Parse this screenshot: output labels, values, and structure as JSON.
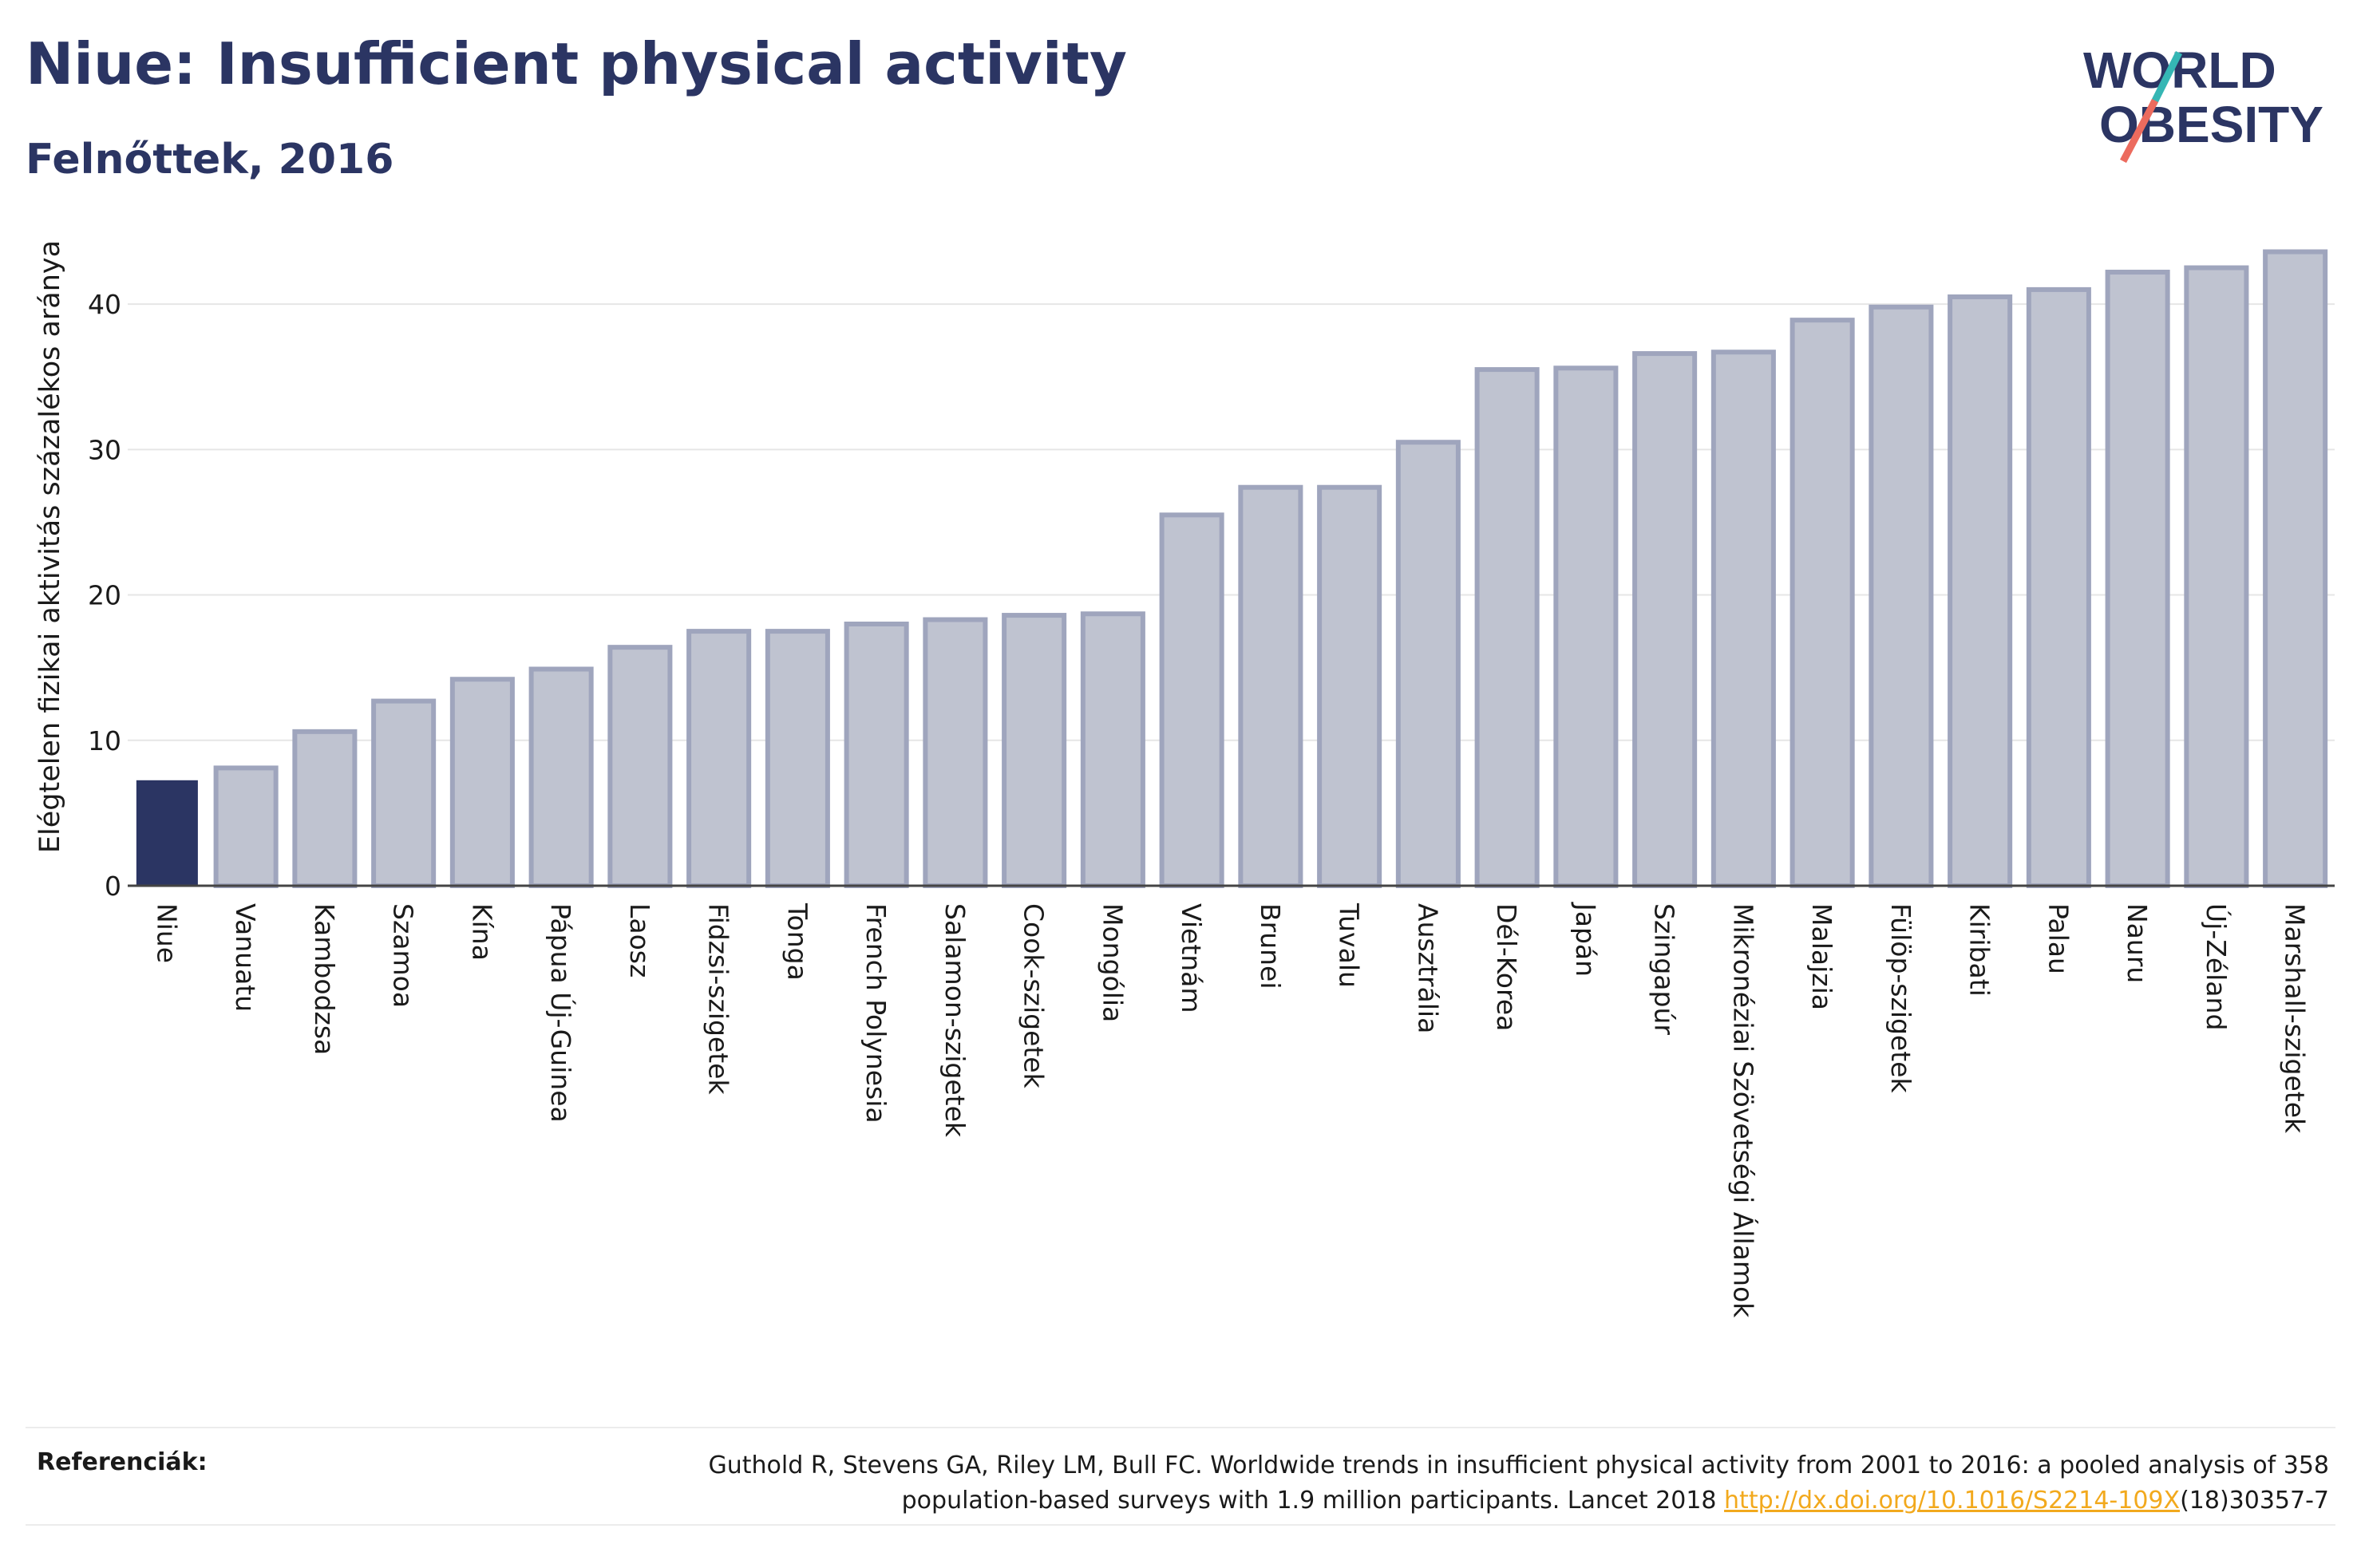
{
  "header": {
    "title": "Niue: Insufficient physical activity",
    "subtitle": "Felnőttek, 2016"
  },
  "logo": {
    "line1": "WORLD",
    "line2": "OBESITY"
  },
  "colors": {
    "highlight_bar": "#2b3563",
    "other_bar_fill": "#bfc3d0",
    "other_bar_stroke": "#9fa5bd",
    "text": "#2b3563",
    "link": "#f2a91d",
    "grid": "#e6e6e6"
  },
  "chart_data": {
    "type": "bar",
    "ylabel": "Elégtelen fizikai aktivitás százalékos aránya",
    "xlabel": "",
    "ylim": [
      0,
      45
    ],
    "yticks": [
      0,
      10,
      20,
      30,
      40
    ],
    "grid": true,
    "highlight": "Niue",
    "categories": [
      "Niue",
      "Vanuatu",
      "Kambodzsa",
      "Szamoa",
      "Kína",
      "Pápua Új-Guinea",
      "Laosz",
      "Fidzsi-szigetek",
      "Tonga",
      "French Polynesia",
      "Salamon-szigetek",
      "Cook-szigetek",
      "Mongólia",
      "Vietnám",
      "Brunei",
      "Tuvalu",
      "Ausztrália",
      "Dél-Korea",
      "Japán",
      "Szingapúr",
      "Mikronéziai Szövetségi Államok",
      "Malajzia",
      "Fülöp-szigetek",
      "Kiribati",
      "Palau",
      "Nauru",
      "Új-Zéland",
      "Marshall-szigetek"
    ],
    "values": [
      7.2,
      8.1,
      10.6,
      12.7,
      14.2,
      14.9,
      16.4,
      17.5,
      17.5,
      18.0,
      18.3,
      18.6,
      18.7,
      25.5,
      27.4,
      27.4,
      30.5,
      35.5,
      35.6,
      36.6,
      36.7,
      38.9,
      39.8,
      40.5,
      41.0,
      42.2,
      42.5,
      43.6
    ]
  },
  "footer": {
    "ref_label": "Referenciák:",
    "ref_text_1": "Guthold R, Stevens GA, Riley LM, Bull FC. Worldwide trends in insufficient physical activity from 2001 to 2016: a pooled analysis of 358",
    "ref_text_2": "population-based surveys with 1.9 million participants. Lancet 2018",
    "ref_link": "http://dx.doi.org/10.1016/S2214-109X",
    "ref_text_3": "(18)30357-7"
  }
}
